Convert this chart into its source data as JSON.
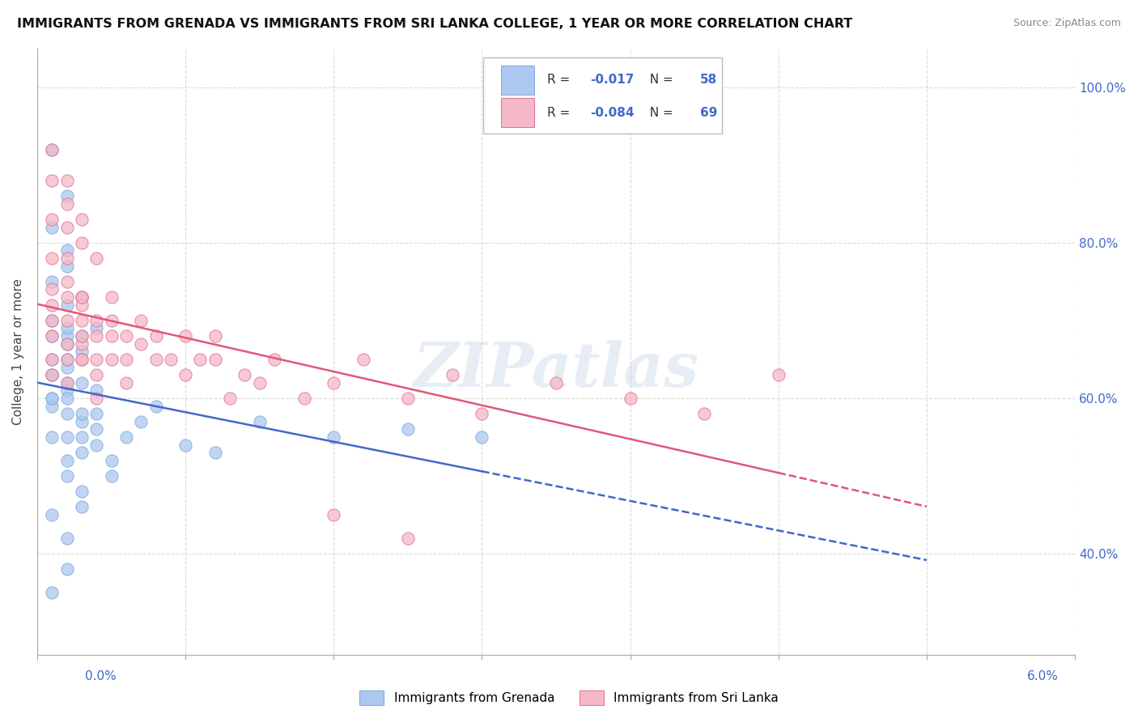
{
  "title": "IMMIGRANTS FROM GRENADA VS IMMIGRANTS FROM SRI LANKA COLLEGE, 1 YEAR OR MORE CORRELATION CHART",
  "source": "Source: ZipAtlas.com",
  "ylabel": "College, 1 year or more",
  "y_tick_labels": [
    "40.0%",
    "60.0%",
    "80.0%",
    "100.0%"
  ],
  "y_tick_vals": [
    0.4,
    0.6,
    0.8,
    1.0
  ],
  "watermark": "ZIPatlas",
  "grenada_color_fill": "#adc8f0",
  "grenada_color_edge": "#7baad8",
  "grenada_line_color": "#4169c8",
  "srilanka_color_fill": "#f5b8c8",
  "srilanka_color_edge": "#e07090",
  "srilanka_line_color": "#e05878",
  "xlim": [
    0.0,
    0.06
  ],
  "ylim": [
    0.27,
    1.05
  ],
  "background_color": "#ffffff",
  "grid_color": "#cccccc",
  "legend_r1": "-0.017",
  "legend_n1": "58",
  "legend_r2": "-0.084",
  "legend_n2": "69",
  "grenada_x": [
    0.001,
    0.002,
    0.001,
    0.002,
    0.001,
    0.001,
    0.002,
    0.002,
    0.002,
    0.003,
    0.001,
    0.001,
    0.002,
    0.002,
    0.001,
    0.003,
    0.002,
    0.003,
    0.004,
    0.002,
    0.001,
    0.001,
    0.002,
    0.001,
    0.002,
    0.003,
    0.001,
    0.002,
    0.001,
    0.002,
    0.003,
    0.004,
    0.002,
    0.003,
    0.002,
    0.003,
    0.004,
    0.002,
    0.003,
    0.004,
    0.004,
    0.003,
    0.005,
    0.005,
    0.006,
    0.007,
    0.008,
    0.01,
    0.012,
    0.015,
    0.02,
    0.025,
    0.03,
    0.001,
    0.002,
    0.003,
    0.002,
    0.001
  ],
  "grenada_y": [
    0.92,
    0.86,
    0.82,
    0.79,
    0.75,
    0.7,
    0.77,
    0.72,
    0.68,
    0.73,
    0.68,
    0.65,
    0.69,
    0.67,
    0.63,
    0.68,
    0.64,
    0.66,
    0.69,
    0.62,
    0.6,
    0.63,
    0.61,
    0.59,
    0.65,
    0.62,
    0.6,
    0.58,
    0.55,
    0.6,
    0.57,
    0.61,
    0.55,
    0.58,
    0.52,
    0.55,
    0.58,
    0.5,
    0.53,
    0.56,
    0.54,
    0.48,
    0.52,
    0.5,
    0.55,
    0.57,
    0.59,
    0.54,
    0.53,
    0.57,
    0.55,
    0.56,
    0.55,
    0.45,
    0.42,
    0.46,
    0.38,
    0.35
  ],
  "srilanka_x": [
    0.001,
    0.001,
    0.001,
    0.001,
    0.001,
    0.001,
    0.001,
    0.001,
    0.001,
    0.002,
    0.002,
    0.002,
    0.002,
    0.002,
    0.002,
    0.002,
    0.003,
    0.003,
    0.003,
    0.003,
    0.003,
    0.003,
    0.003,
    0.004,
    0.004,
    0.004,
    0.004,
    0.004,
    0.005,
    0.005,
    0.005,
    0.005,
    0.006,
    0.006,
    0.006,
    0.007,
    0.007,
    0.008,
    0.008,
    0.009,
    0.01,
    0.01,
    0.011,
    0.012,
    0.012,
    0.013,
    0.014,
    0.015,
    0.016,
    0.018,
    0.02,
    0.022,
    0.025,
    0.028,
    0.03,
    0.035,
    0.04,
    0.045,
    0.05,
    0.02,
    0.025,
    0.002,
    0.003,
    0.001,
    0.002,
    0.003,
    0.004,
    0.002,
    0.003
  ],
  "srilanka_y": [
    0.88,
    0.83,
    0.78,
    0.74,
    0.72,
    0.7,
    0.68,
    0.65,
    0.63,
    0.78,
    0.73,
    0.7,
    0.67,
    0.65,
    0.62,
    0.75,
    0.7,
    0.67,
    0.65,
    0.73,
    0.68,
    0.72,
    0.65,
    0.7,
    0.68,
    0.65,
    0.63,
    0.6,
    0.68,
    0.65,
    0.7,
    0.73,
    0.68,
    0.65,
    0.62,
    0.7,
    0.67,
    0.65,
    0.68,
    0.65,
    0.68,
    0.63,
    0.65,
    0.68,
    0.65,
    0.6,
    0.63,
    0.62,
    0.65,
    0.6,
    0.62,
    0.65,
    0.6,
    0.63,
    0.58,
    0.62,
    0.6,
    0.58,
    0.63,
    0.45,
    0.42,
    0.85,
    0.8,
    0.92,
    0.88,
    0.83,
    0.78,
    0.82,
    0.73
  ]
}
